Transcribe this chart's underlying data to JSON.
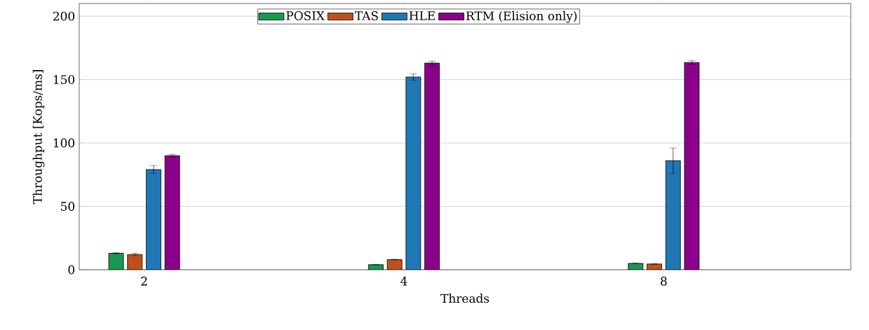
{
  "chart_data": {
    "type": "bar",
    "xlabel": "Threads",
    "ylabel": "Throughput [Kops/ms]",
    "categories": [
      "2",
      "4",
      "8"
    ],
    "series": [
      {
        "name": "POSIX",
        "color": "#1a9850",
        "values": [
          13,
          4,
          5
        ],
        "errors": [
          0.5,
          0.3,
          0.4
        ]
      },
      {
        "name": "TAS",
        "color": "#c0501a",
        "values": [
          12,
          8,
          4.5
        ],
        "errors": [
          1,
          0.3,
          0.4
        ]
      },
      {
        "name": "HLE",
        "color": "#1f78b4",
        "values": [
          79,
          152,
          86
        ],
        "errors": [
          3,
          2.5,
          10
        ]
      },
      {
        "name": "RTM (Elision only)",
        "color": "#8b008b",
        "values": [
          90,
          163,
          163.5
        ],
        "errors": [
          1,
          1.5,
          1.5
        ]
      }
    ],
    "ylim": [
      0,
      210
    ],
    "yticks": [
      0,
      50,
      100,
      150,
      200
    ],
    "grid": "y",
    "legend": "top"
  }
}
